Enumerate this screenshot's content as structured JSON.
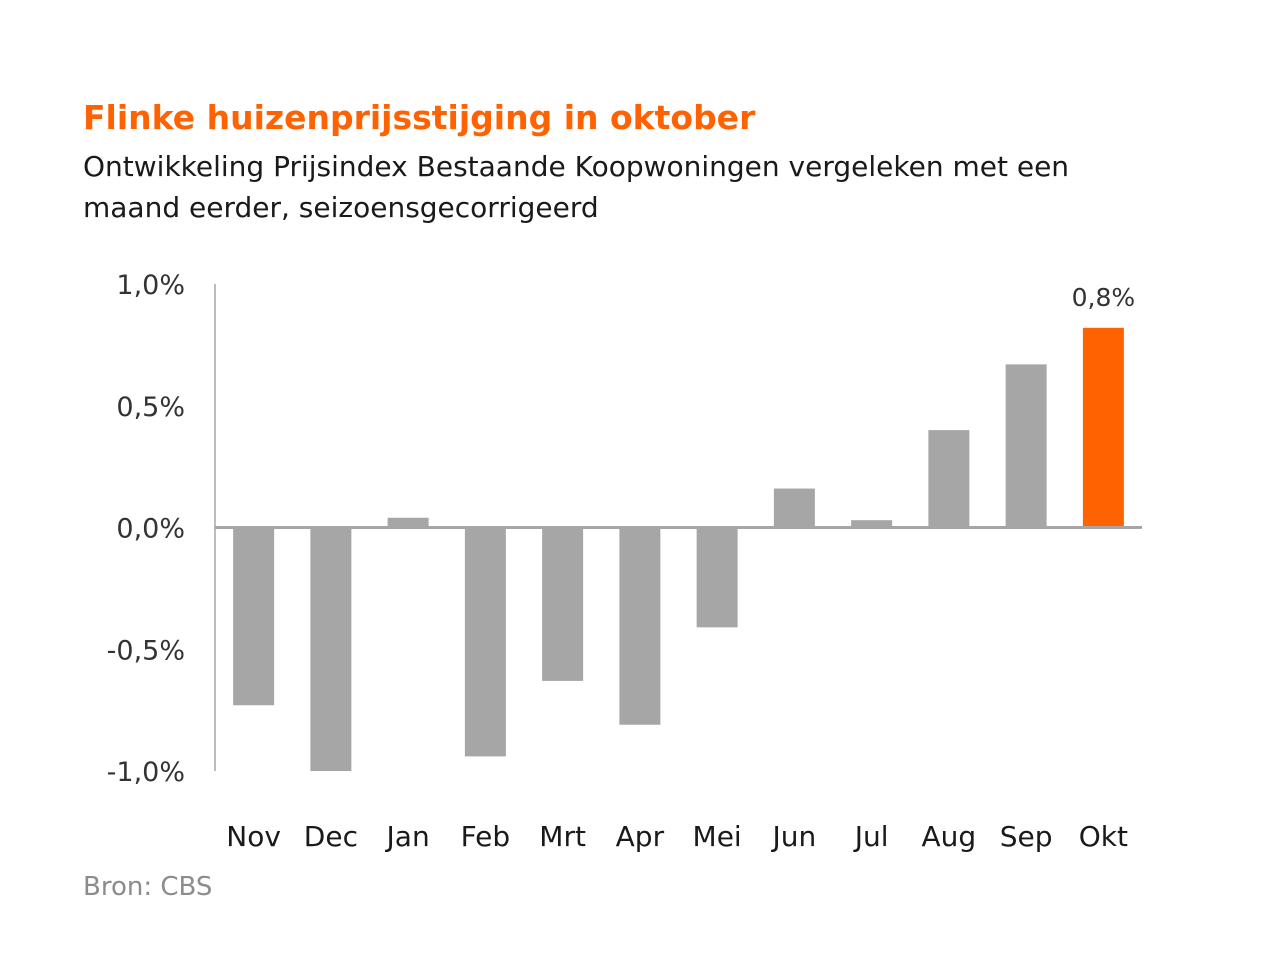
{
  "chart_data": {
    "type": "bar",
    "title": "Flinke huizenprijsstijging in oktober",
    "subtitle": "Ontwikkeling Prijsindex Bestaande Koopwoningen vergeleken met een maand eerder, seizoensgecorrigeerd",
    "xlabel": "",
    "ylabel": "",
    "categories": [
      "Nov",
      "Dec",
      "Jan",
      "Feb",
      "Mrt",
      "Apr",
      "Mei",
      "Jun",
      "Jul",
      "Aug",
      "Sep",
      "Okt"
    ],
    "values": [
      -0.73,
      -1.0,
      0.04,
      -0.94,
      -0.63,
      -0.81,
      -0.41,
      0.16,
      0.03,
      0.4,
      0.67,
      0.82
    ],
    "ylim": [
      -1.0,
      1.0
    ],
    "yticks": [
      1.0,
      0.5,
      0.0,
      -0.5,
      -1.0
    ],
    "ytick_labels": [
      "1,0%",
      "0,5%",
      "0,0%",
      "-0,5%",
      "-1,0%"
    ],
    "highlight_index": 11,
    "data_labels": [
      {
        "index": 11,
        "text": "0,8%"
      }
    ],
    "grid": false,
    "colors": {
      "default": "#a6a6a6",
      "highlight": "#ff6200",
      "axis": "#a6a6a6"
    },
    "source": "Bron: CBS"
  }
}
